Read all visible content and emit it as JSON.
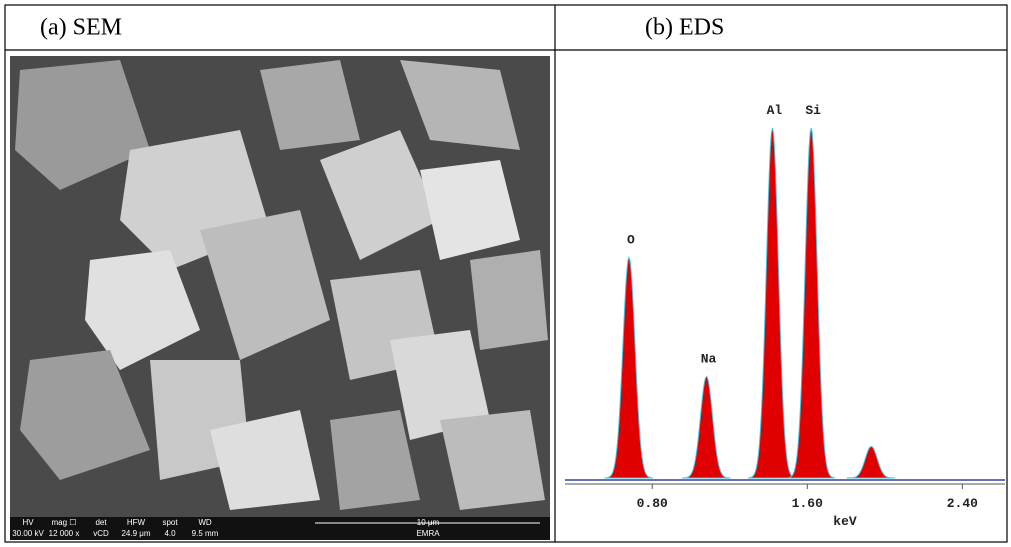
{
  "table": {
    "headers": [
      "(a) SEM",
      "(b) EDS"
    ]
  },
  "sem": {
    "info_labels": [
      "HV",
      "mag ☐",
      "det",
      "HFW",
      "spot",
      "WD",
      "10 μm"
    ],
    "info_values": [
      "30.00 kV",
      "12 000 x",
      "vCD",
      "24.9 μm",
      "4.0",
      "9.5 mm",
      "EMRA"
    ]
  },
  "eds": {
    "xlabel": "keV",
    "xlim": [
      0.35,
      2.62
    ],
    "ylim": [
      0,
      100
    ],
    "xticks": [
      {
        "value": 0.8,
        "label": "0.80"
      },
      {
        "value": 1.6,
        "label": "1.60"
      },
      {
        "value": 2.4,
        "label": "2.40"
      }
    ],
    "color": "#e00000",
    "peaks": [
      {
        "label": "O",
        "x": 0.68,
        "value": 63
      },
      {
        "label": "Na",
        "x": 1.08,
        "value": 29
      },
      {
        "label": "Al",
        "x": 1.42,
        "value": 100
      },
      {
        "label": "Si",
        "x": 1.62,
        "value": 100
      },
      {
        "label": null,
        "x": 1.93,
        "value": 9
      }
    ]
  }
}
